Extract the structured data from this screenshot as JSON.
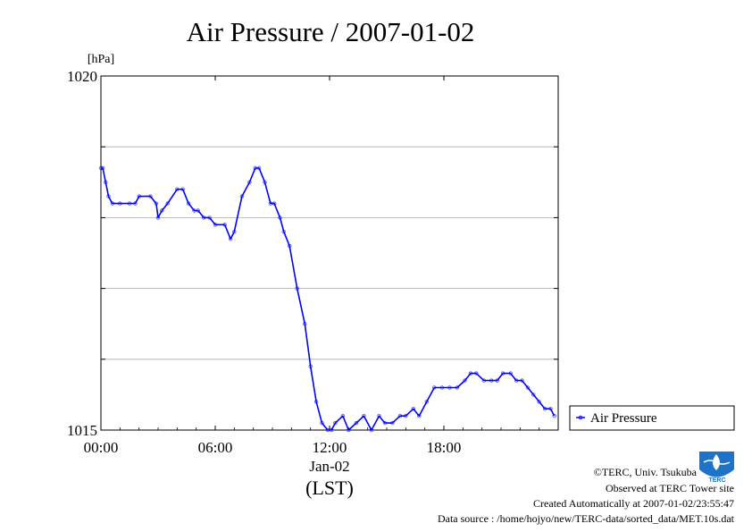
{
  "chart_data": {
    "type": "line",
    "title": "Air Pressure / 2007-01-02",
    "y_unit": "[hPa]",
    "ylim": [
      1015,
      1020
    ],
    "y_ticks": [
      {
        "value": 1015,
        "label": "1015"
      },
      {
        "value": 1016,
        "label": ""
      },
      {
        "value": 1017,
        "label": ""
      },
      {
        "value": 1018,
        "label": ""
      },
      {
        "value": 1019,
        "label": ""
      },
      {
        "value": 1020,
        "label": "1020"
      }
    ],
    "xlim": [
      0,
      24
    ],
    "x_ticks": [
      {
        "value": 0,
        "label": "00:00"
      },
      {
        "value": 6,
        "label": "06:00"
      },
      {
        "value": 12,
        "label": "12:00"
      },
      {
        "value": 18,
        "label": "18:00"
      }
    ],
    "x_date_label": "Jan-02",
    "x_axis_label": "(LST)",
    "grid": true,
    "legend_position": "bottom-right",
    "series": [
      {
        "name": "Air Pressure",
        "color": "#0000ff",
        "x": [
          0.0,
          0.1,
          0.25,
          0.4,
          0.6,
          1.0,
          1.5,
          1.8,
          2.0,
          2.6,
          2.9,
          3.0,
          3.2,
          3.5,
          4.0,
          4.3,
          4.6,
          4.9,
          5.1,
          5.4,
          5.7,
          6.0,
          6.5,
          6.8,
          7.0,
          7.4,
          7.8,
          8.1,
          8.3,
          8.6,
          8.9,
          9.1,
          9.4,
          9.6,
          9.9,
          10.3,
          10.7,
          11.0,
          11.3,
          11.6,
          11.9,
          12.1,
          12.3,
          12.7,
          13.0,
          13.4,
          13.8,
          14.2,
          14.6,
          14.9,
          15.3,
          15.7,
          16.0,
          16.4,
          16.7,
          17.1,
          17.5,
          17.9,
          18.3,
          18.7,
          19.1,
          19.4,
          19.7,
          20.1,
          20.5,
          20.8,
          21.1,
          21.5,
          21.8,
          22.1,
          22.4,
          22.7,
          23.0,
          23.3,
          23.6,
          23.8
        ],
        "y": [
          1018.7,
          1018.7,
          1018.5,
          1018.3,
          1018.2,
          1018.2,
          1018.2,
          1018.2,
          1018.3,
          1018.3,
          1018.2,
          1018.0,
          1018.1,
          1018.2,
          1018.4,
          1018.4,
          1018.2,
          1018.1,
          1018.1,
          1018.0,
          1018.0,
          1017.9,
          1017.9,
          1017.7,
          1017.8,
          1018.3,
          1018.5,
          1018.7,
          1018.7,
          1018.5,
          1018.2,
          1018.2,
          1018.0,
          1017.8,
          1017.6,
          1017.0,
          1016.5,
          1015.9,
          1015.4,
          1015.1,
          1015.0,
          1015.0,
          1015.1,
          1015.2,
          1015.0,
          1015.1,
          1015.2,
          1015.0,
          1015.2,
          1015.1,
          1015.1,
          1015.2,
          1015.2,
          1015.3,
          1015.2,
          1015.4,
          1015.6,
          1015.6,
          1015.6,
          1015.6,
          1015.7,
          1015.8,
          1015.8,
          1015.7,
          1015.7,
          1015.7,
          1015.8,
          1015.8,
          1015.7,
          1015.7,
          1015.6,
          1015.5,
          1015.4,
          1015.3,
          1015.3,
          1015.2
        ]
      }
    ]
  },
  "footer": {
    "copyright": "©TERC, Univ. Tsukuba",
    "site": "Observed at TERC Tower site",
    "created": "Created Automatically at 2007-01-02/23:55:47",
    "source": "Data source : /home/hojyo/new/TERC-data/sorted_data/MET.10s.dat",
    "logo_text": "TERC"
  }
}
